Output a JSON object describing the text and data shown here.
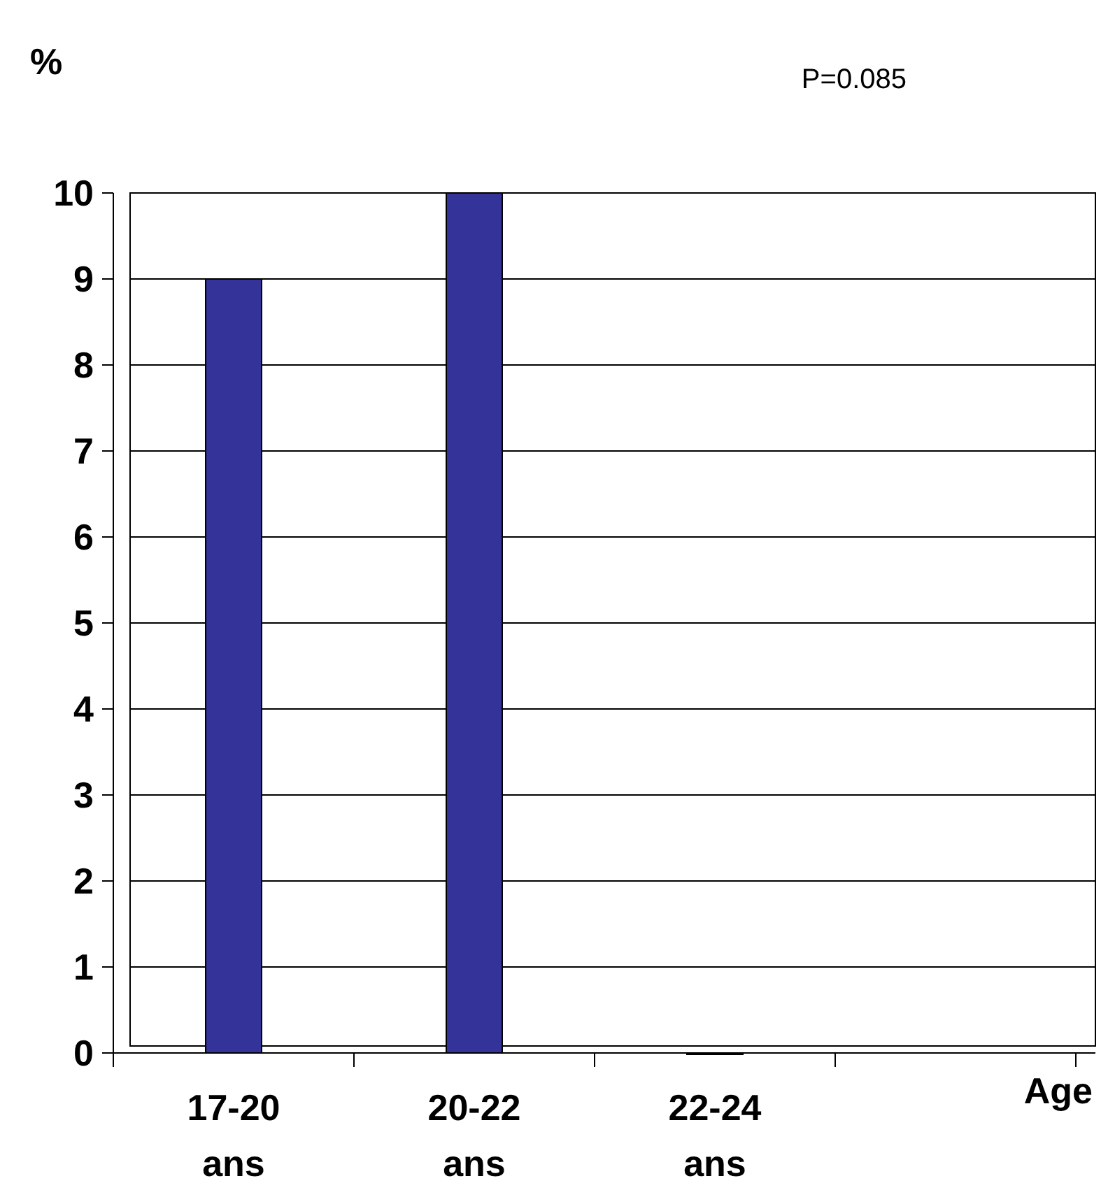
{
  "chart_data": {
    "type": "bar",
    "ylabel": "%",
    "annotations": [
      "P=0.085",
      "Age"
    ],
    "categories": [
      "17-20 ans",
      "20-22 ans",
      "22-24 ans"
    ],
    "values": [
      9,
      10,
      0
    ],
    "color": "#333399",
    "ylim": [
      0,
      10
    ],
    "yticks": [
      0,
      1,
      2,
      3,
      4,
      5,
      6,
      7,
      8,
      9,
      10
    ],
    "grid": "y"
  }
}
